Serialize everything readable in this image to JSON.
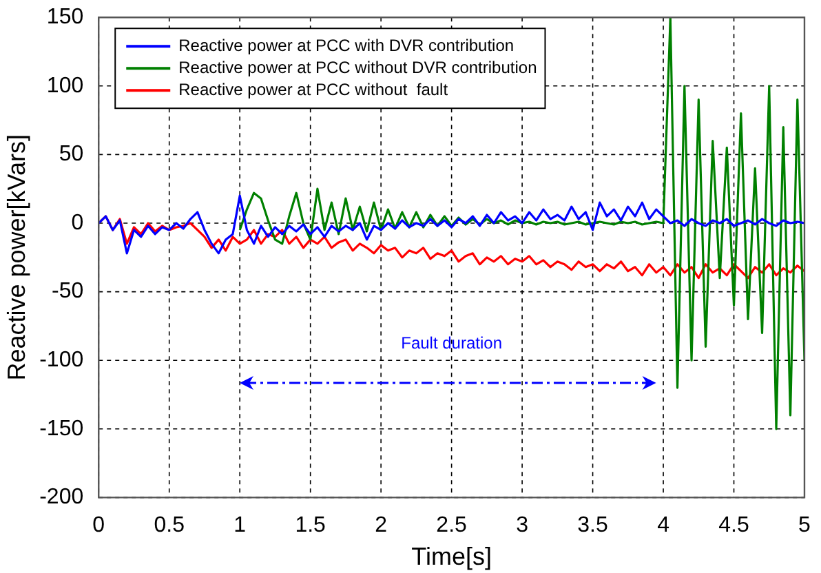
{
  "chart_data": {
    "type": "line",
    "xlabel": "Time[s]",
    "ylabel": "Reactive power[kVars]",
    "x": [
      0,
      0.05,
      0.1,
      0.15,
      0.2,
      0.25,
      0.3,
      0.35,
      0.4,
      0.45,
      0.5,
      0.55,
      0.6,
      0.65,
      0.7,
      0.75,
      0.8,
      0.85,
      0.9,
      0.95,
      1,
      1.05,
      1.1,
      1.15,
      1.2,
      1.25,
      1.3,
      1.35,
      1.4,
      1.45,
      1.5,
      1.55,
      1.6,
      1.65,
      1.7,
      1.75,
      1.8,
      1.85,
      1.9,
      1.95,
      2,
      2.05,
      2.1,
      2.15,
      2.2,
      2.25,
      2.3,
      2.35,
      2.4,
      2.45,
      2.5,
      2.55,
      2.6,
      2.65,
      2.7,
      2.75,
      2.8,
      2.85,
      2.9,
      2.95,
      3,
      3.05,
      3.1,
      3.15,
      3.2,
      3.25,
      3.3,
      3.35,
      3.4,
      3.45,
      3.5,
      3.55,
      3.6,
      3.65,
      3.7,
      3.75,
      3.8,
      3.85,
      3.9,
      3.95,
      4,
      4.05,
      4.1,
      4.15,
      4.2,
      4.25,
      4.3,
      4.35,
      4.4,
      4.45,
      4.5,
      4.55,
      4.6,
      4.65,
      4.7,
      4.75,
      4.8,
      4.85,
      4.9,
      4.95,
      5
    ],
    "series": [
      {
        "name": "Reactive power at PCC with DVR contribution",
        "color": "#0000ff",
        "values": [
          0,
          5,
          -5,
          2,
          -22,
          -5,
          -10,
          -2,
          -8,
          -3,
          -5,
          0,
          -4,
          3,
          8,
          -5,
          -15,
          -22,
          -12,
          -8,
          20,
          -5,
          -15,
          -2,
          -10,
          -3,
          -8,
          -2,
          -6,
          -1,
          -8,
          -3,
          -10,
          -2,
          -6,
          -2,
          -5,
          0,
          -12,
          -2,
          -5,
          0,
          -4,
          2,
          -3,
          0,
          -2,
          3,
          -2,
          2,
          -3,
          3,
          0,
          5,
          -2,
          6,
          0,
          8,
          2,
          5,
          0,
          8,
          2,
          10,
          3,
          6,
          2,
          12,
          3,
          8,
          -5,
          15,
          5,
          10,
          2,
          12,
          5,
          15,
          3,
          10,
          5,
          0,
          2,
          -2,
          3,
          0,
          -2,
          2,
          0,
          3,
          -2,
          0,
          2,
          -1,
          3,
          0,
          -2,
          2,
          0,
          1,
          0
        ]
      },
      {
        "name": "Reactive power at PCC without DVR contribution",
        "color": "#008000",
        "values": [
          null,
          null,
          null,
          null,
          null,
          null,
          null,
          null,
          null,
          null,
          null,
          null,
          null,
          null,
          null,
          null,
          null,
          null,
          null,
          null,
          -5,
          10,
          22,
          18,
          2,
          -12,
          -15,
          5,
          22,
          0,
          -12,
          25,
          -5,
          15,
          -8,
          18,
          -5,
          12,
          -6,
          15,
          -5,
          10,
          -4,
          8,
          -3,
          8,
          -3,
          6,
          -2,
          5,
          -2,
          4,
          -1,
          3,
          -1,
          3,
          0,
          2,
          -1,
          2,
          0,
          1,
          -1,
          1,
          0,
          1,
          -1,
          0,
          1,
          -1,
          0,
          1,
          0,
          -1,
          1,
          0,
          1,
          -1,
          0,
          1,
          0,
          150,
          -120,
          100,
          -100,
          90,
          -90,
          60,
          -40,
          55,
          -60,
          80,
          -70,
          40,
          -80,
          100,
          -150,
          70,
          -140,
          90,
          -100
        ]
      },
      {
        "name": "Reactive power at PCC without  fault",
        "color": "#ff0000",
        "values": [
          0,
          5,
          -5,
          3,
          -15,
          -3,
          -8,
          0,
          -6,
          -2,
          -5,
          -3,
          -2,
          0,
          -5,
          -10,
          -18,
          -12,
          -20,
          -10,
          -15,
          -12,
          -5,
          -15,
          -8,
          -10,
          -5,
          -15,
          -10,
          -18,
          -12,
          -15,
          -10,
          -18,
          -14,
          -12,
          -20,
          -15,
          -18,
          -22,
          -16,
          -20,
          -18,
          -25,
          -20,
          -22,
          -18,
          -26,
          -22,
          -24,
          -20,
          -28,
          -24,
          -22,
          -30,
          -25,
          -28,
          -24,
          -30,
          -26,
          -28,
          -24,
          -30,
          -27,
          -32,
          -28,
          -30,
          -34,
          -28,
          -32,
          -30,
          -35,
          -30,
          -33,
          -28,
          -35,
          -32,
          -38,
          -30,
          -36,
          -32,
          -38,
          -30,
          -36,
          -32,
          -40,
          -30,
          -36,
          -33,
          -38,
          -30,
          -35,
          -40,
          -32,
          -36,
          -30,
          -38,
          -33,
          -36,
          -31,
          -35
        ]
      }
    ],
    "xlim": [
      0,
      5
    ],
    "xticks": [
      0,
      0.5,
      1,
      1.5,
      2,
      2.5,
      3,
      3.5,
      4,
      4.5,
      5
    ],
    "ylim": [
      -200,
      150
    ],
    "yticks": [
      -200,
      -150,
      -100,
      -50,
      0,
      50,
      100,
      150
    ],
    "grid": true,
    "legend": "top left",
    "marker": "none",
    "line_style": "solid",
    "annotations": [
      "Fault duration"
    ]
  }
}
